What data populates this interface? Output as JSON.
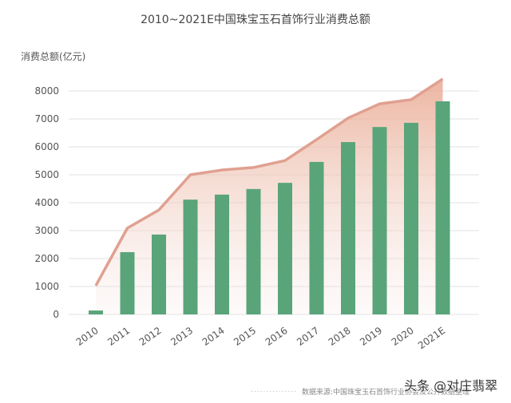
{
  "chart_data": {
    "type": "bar",
    "title": "2010~2021E中国珠宝玉石首饰行业消费总额",
    "ylabel": "消费总额(亿元)",
    "xlabel": "",
    "categories": [
      "2010",
      "2011",
      "2012",
      "2013",
      "2014",
      "2015",
      "2016",
      "2017",
      "2018",
      "2019",
      "2020",
      "2021E"
    ],
    "values": [
      140,
      2230,
      2860,
      4110,
      4290,
      4490,
      4710,
      5460,
      6170,
      6710,
      6860,
      7630
    ],
    "area_line": [
      1030,
      3090,
      3740,
      5000,
      5170,
      5260,
      5510,
      6260,
      7030,
      7540,
      7690,
      8430
    ],
    "ylim": [
      0,
      8000
    ],
    "yticks": [
      0,
      1000,
      2000,
      3000,
      4000,
      5000,
      6000,
      7000,
      8000
    ],
    "grid": true,
    "colors": {
      "bar": "#5aa47a",
      "line": "#e0a090",
      "area": "#eeb8a6"
    }
  },
  "footer": {
    "dots": "...............",
    "source": "数据来源:中国珠宝玉石首饰行业协会及公开数据整理",
    "watermark": "头条 @对庄翡翠"
  }
}
